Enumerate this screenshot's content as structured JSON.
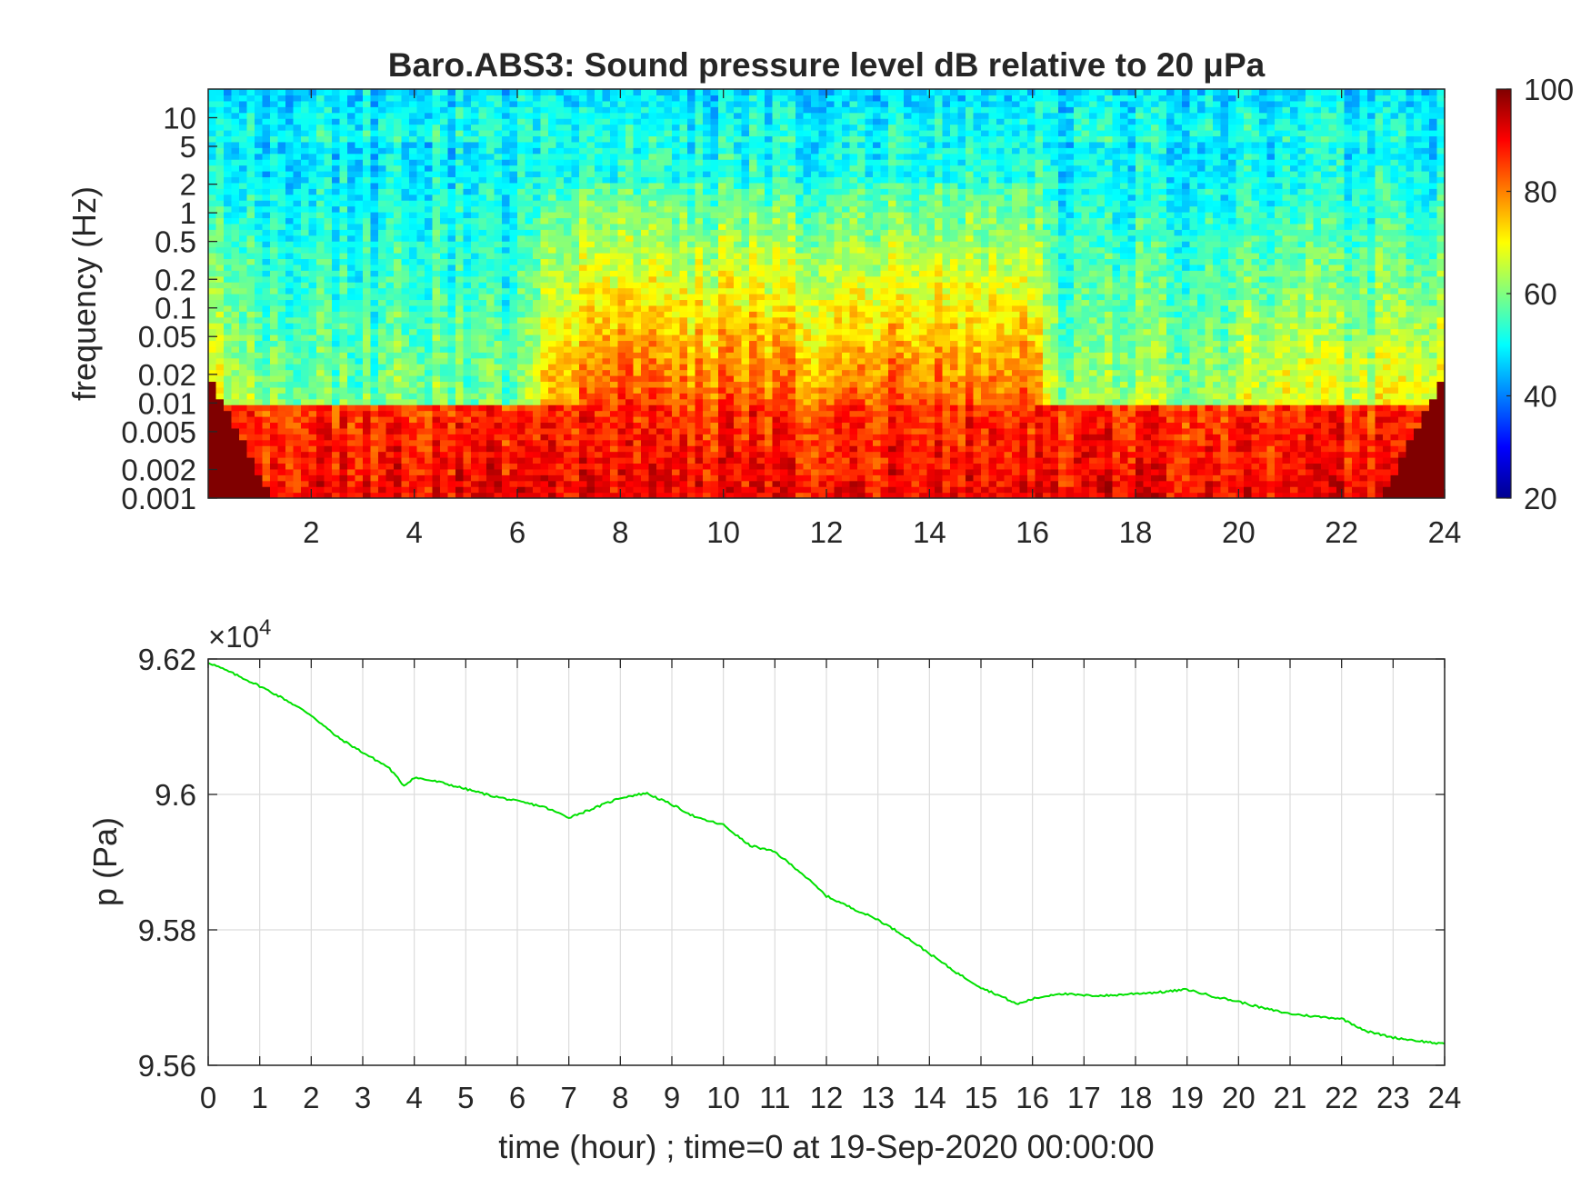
{
  "figure": {
    "title": "Baro.ABS3: Sound pressure level dB relative to 20 μPa"
  },
  "colormap": {
    "name": "jet",
    "stops": [
      "#00008f",
      "#0000ff",
      "#00ffff",
      "#ffff00",
      "#ff0000",
      "#800000"
    ]
  },
  "chart_data": [
    {
      "type": "heatmap",
      "title": "Baro.ABS3: Sound pressure level dB relative to 20 μPa",
      "xlabel": "",
      "ylabel": "frequency (Hz)",
      "xlim": [
        0,
        24
      ],
      "ylim": [
        0.001,
        20
      ],
      "yscale": "log",
      "x_ticks": [
        2,
        4,
        6,
        8,
        10,
        12,
        14,
        16,
        18,
        20,
        22,
        24
      ],
      "x_tick_labels": [
        "2",
        "4",
        "6",
        "8",
        "10",
        "12",
        "14",
        "16",
        "18",
        "20",
        "22",
        "24"
      ],
      "y_ticks": [
        0.001,
        0.002,
        0.005,
        0.01,
        0.02,
        0.05,
        0.1,
        0.2,
        0.5,
        1,
        2,
        5,
        10
      ],
      "y_tick_labels": [
        "0.001",
        "0.002",
        "0.005",
        "0.01",
        "0.02",
        "0.05",
        "0.1",
        "0.2",
        "0.5",
        "1",
        "2",
        "5",
        "10"
      ],
      "colorbar": {
        "range": [
          20,
          100
        ],
        "ticks": [
          20,
          40,
          60,
          80,
          100
        ],
        "tick_labels": [
          "20",
          "40",
          "60",
          "80",
          "100"
        ]
      },
      "activity_profile": {
        "description_free": true,
        "hours": [
          0,
          1,
          2,
          3,
          4,
          5,
          6,
          6.5,
          7,
          8,
          9,
          10,
          11,
          12,
          13,
          14,
          15,
          16,
          16.3,
          17,
          18,
          19,
          20,
          21,
          22,
          23,
          24
        ],
        "level_db": [
          70,
          62,
          60,
          58,
          62,
          58,
          58,
          72,
          80,
          86,
          82,
          84,
          83,
          82,
          84,
          84,
          82,
          84,
          66,
          60,
          64,
          62,
          66,
          70,
          66,
          70,
          72
        ]
      }
    },
    {
      "type": "line",
      "xlabel": "time (hour) ; time=0 at 19-Sep-2020 00:00:00",
      "ylabel": "p (Pa)",
      "exponent_label": "×10",
      "exponent_power": "4",
      "xlim": [
        0,
        24
      ],
      "ylim": [
        95600,
        96200
      ],
      "grid": true,
      "x_ticks": [
        0,
        1,
        2,
        3,
        4,
        5,
        6,
        7,
        8,
        9,
        10,
        11,
        12,
        13,
        14,
        15,
        16,
        17,
        18,
        19,
        20,
        21,
        22,
        23,
        24
      ],
      "x_tick_labels": [
        "0",
        "1",
        "2",
        "3",
        "4",
        "5",
        "6",
        "7",
        "8",
        "9",
        "10",
        "11",
        "12",
        "13",
        "14",
        "15",
        "16",
        "17",
        "18",
        "19",
        "20",
        "21",
        "22",
        "23",
        "24"
      ],
      "y_ticks": [
        95600,
        95800,
        96000,
        96200
      ],
      "y_tick_labels": [
        "9.56",
        "9.58",
        "9.6",
        "9.62"
      ],
      "line_color": "#00e000",
      "series": [
        {
          "x": [
            0,
            0.5,
            1,
            1.5,
            2,
            2.5,
            3,
            3.5,
            3.8,
            4,
            4.5,
            5,
            5.5,
            6,
            6.5,
            7,
            7.5,
            8,
            8.5,
            9,
            9.5,
            10,
            10.5,
            11,
            11.5,
            12,
            12.5,
            13,
            13.5,
            14,
            14.5,
            15,
            15.5,
            15.7,
            16,
            16.5,
            17,
            17.5,
            18,
            18.5,
            19,
            19.5,
            20,
            20.5,
            21,
            21.5,
            22,
            22.5,
            23,
            23.5,
            24
          ],
          "y": [
            96195,
            96178,
            96160,
            96140,
            96117,
            96085,
            96062,
            96040,
            96013,
            96025,
            96018,
            96008,
            95998,
            95990,
            95982,
            95966,
            95980,
            95995,
            96002,
            95985,
            95965,
            95955,
            95925,
            95915,
            95885,
            95850,
            95832,
            95815,
            95792,
            95765,
            95738,
            95715,
            95698,
            95690,
            95698,
            95706,
            95703,
            95703,
            95706,
            95708,
            95712,
            95702,
            95694,
            95684,
            95676,
            95672,
            95669,
            95650,
            95641,
            95636,
            95631
          ]
        }
      ]
    }
  ]
}
